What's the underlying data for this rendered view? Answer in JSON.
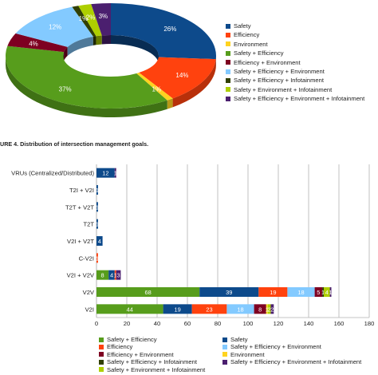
{
  "colors": {
    "Safety": "#0d4a8b",
    "Efficiency": "#ff420e",
    "Environment": "#ffd320",
    "Safety + Efficiency": "#579d1c",
    "Efficiency + Environment": "#7e0021",
    "Safety + Efficiency + Environment": "#83caff",
    "Safety + Efficiency + Infotainment": "#314004",
    "Safety + Environment + Infotainment": "#aecf00",
    "Safety + Efficiency + Environment + Infotainment": "#4b1f6f"
  },
  "caption": {
    "label": "URE 4.",
    "text": "Distribution of intersection management goals."
  },
  "chart_data": [
    {
      "type": "pie",
      "variant": "donut-3d",
      "slices": [
        {
          "name": "Safety",
          "label": "26%",
          "value": 26
        },
        {
          "name": "Efficiency",
          "label": "14%",
          "value": 14
        },
        {
          "name": "Environment",
          "label": "1%",
          "value": 1
        },
        {
          "name": "Safety + Efficiency",
          "label": "37%",
          "value": 37
        },
        {
          "name": "Efficiency + Environment",
          "label": "4%",
          "value": 4
        },
        {
          "name": "Safety + Efficiency + Environment",
          "label": "12%",
          "value": 12
        },
        {
          "name": "Safety + Efficiency + Infotainment",
          "label": "1%",
          "value": 1
        },
        {
          "name": "Safety + Environment + Infotainment",
          "label": "2%",
          "value": 2
        },
        {
          "name": "Safety + Efficiency + Environment + Infotainment",
          "label": "3%",
          "value": 3
        }
      ],
      "legend": [
        "Safety",
        "Efficiency",
        "Environment",
        "Safety + Efficiency",
        "Efficiency + Environment",
        "Safety + Efficiency + Environment",
        "Safety + Efficiency + Infotainment",
        "Safety + Environment + Infotainment",
        "Safety + Efficiency + Environment + Infotainment"
      ],
      "legend_position": "right"
    },
    {
      "type": "bar",
      "orientation": "horizontal",
      "stacked": true,
      "categories": [
        "VRUs (Centralized/Distributed)",
        "T2I + V2I",
        "T2T + V2T",
        "T2T",
        "V2I + V2T",
        "C-V2I",
        "V2I + V2V",
        "V2V",
        "V2I"
      ],
      "series": [
        {
          "name": "Safety + Efficiency",
          "values": [
            0,
            0,
            0,
            0,
            0,
            0,
            8,
            68,
            44
          ]
        },
        {
          "name": "Safety",
          "values": [
            12,
            1,
            1,
            1,
            4,
            0,
            4,
            39,
            19
          ]
        },
        {
          "name": "Efficiency",
          "values": [
            0,
            0,
            0,
            0,
            0,
            1,
            1,
            19,
            23
          ]
        },
        {
          "name": "Safety + Efficiency + Environment",
          "values": [
            0,
            0,
            0,
            0,
            0,
            0,
            0,
            18,
            18
          ]
        },
        {
          "name": "Efficiency + Environment",
          "values": [
            0,
            0,
            0,
            0,
            0,
            0,
            0,
            5,
            8
          ]
        },
        {
          "name": "Safety + Efficiency + Infotainment",
          "values": [
            0,
            0,
            0,
            0,
            0,
            0,
            0,
            1,
            0
          ]
        },
        {
          "name": "Environment",
          "values": [
            0,
            0,
            0,
            0,
            0,
            0,
            0,
            0,
            1
          ]
        },
        {
          "name": "Safety + Environment + Infotainment",
          "values": [
            0,
            0,
            0,
            0,
            0,
            0,
            0,
            4,
            2
          ]
        },
        {
          "name": "Safety + Efficiency + Environment + Infotainment",
          "values": [
            1,
            0,
            0,
            0,
            0,
            0,
            3,
            1,
            2
          ]
        }
      ],
      "xlim": [
        0,
        180
      ],
      "xticks": [
        0,
        20,
        40,
        60,
        80,
        100,
        120,
        140,
        160,
        180
      ],
      "grid": true,
      "legend": [
        "Safety + Efficiency",
        "Safety",
        "Efficiency",
        "Safety + Efficiency + Environment",
        "Efficiency + Environment",
        "Environment",
        "Safety + Efficiency + Infotainment",
        "Safety + Efficiency + Environment + Infotainment",
        "Safety + Environment + Infotainment"
      ],
      "legend_position": "bottom"
    }
  ]
}
